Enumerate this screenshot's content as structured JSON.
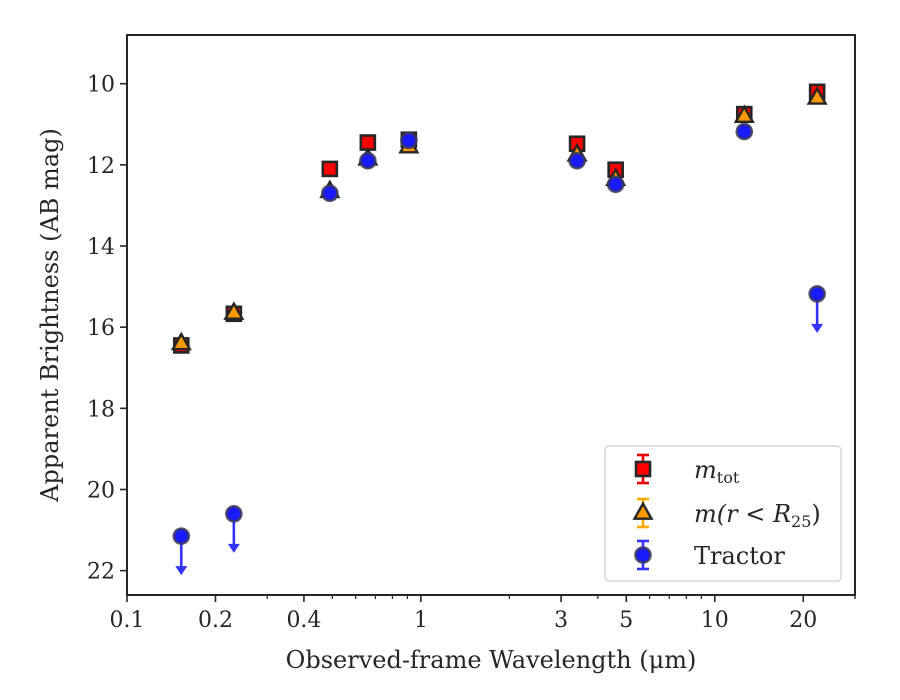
{
  "chart_data": {
    "type": "scatter",
    "xlabel": "Observed-frame Wavelength (μm)",
    "ylabel": "Apparent Brightness (AB mag)",
    "x_scale": "log",
    "xlim": [
      0.1,
      30
    ],
    "ylim": [
      22.6,
      8.8
    ],
    "y_inverted": true,
    "x_ticks": [
      {
        "value": 0.1,
        "label": "0.1"
      },
      {
        "value": 0.2,
        "label": "0.2"
      },
      {
        "value": 0.4,
        "label": "0.4"
      },
      {
        "value": 1,
        "label": "1"
      },
      {
        "value": 3,
        "label": "3"
      },
      {
        "value": 5,
        "label": "5"
      },
      {
        "value": 10,
        "label": "10"
      },
      {
        "value": 20,
        "label": "20"
      }
    ],
    "y_ticks": [
      {
        "value": 10,
        "label": "10"
      },
      {
        "value": 12,
        "label": "12"
      },
      {
        "value": 14,
        "label": "14"
      },
      {
        "value": 16,
        "label": "16"
      },
      {
        "value": 18,
        "label": "18"
      },
      {
        "value": 20,
        "label": "20"
      },
      {
        "value": 22,
        "label": "22"
      }
    ],
    "grid": false,
    "legend_position": "lower-right",
    "series": [
      {
        "name": "m_tot",
        "legend_label": "m",
        "legend_sub": "tot",
        "marker": "square",
        "face_color": "#ff0000",
        "edge_color": "#262626",
        "error_color": "#e60000",
        "points": [
          {
            "x": 0.153,
            "y": 16.45
          },
          {
            "x": 0.231,
            "y": 15.67
          },
          {
            "x": 0.49,
            "y": 12.1
          },
          {
            "x": 0.66,
            "y": 11.45
          },
          {
            "x": 0.91,
            "y": 11.38
          },
          {
            "x": 3.4,
            "y": 11.48
          },
          {
            "x": 4.6,
            "y": 12.12
          },
          {
            "x": 12.6,
            "y": 10.75
          },
          {
            "x": 22.3,
            "y": 10.2
          }
        ]
      },
      {
        "name": "m(r < R25)",
        "legend_label": "m(r < R",
        "legend_sub": "25",
        "legend_close": ")",
        "marker": "triangle",
        "face_color": "#ff9900",
        "edge_color": "#262626",
        "error_color": "#ffaa00",
        "points": [
          {
            "x": 0.153,
            "y": 16.4
          },
          {
            "x": 0.231,
            "y": 15.65
          },
          {
            "x": 0.49,
            "y": 12.65
          },
          {
            "x": 0.66,
            "y": 11.85
          },
          {
            "x": 0.91,
            "y": 11.55
          },
          {
            "x": 3.4,
            "y": 11.75
          },
          {
            "x": 4.6,
            "y": 12.35
          },
          {
            "x": 12.6,
            "y": 10.8
          },
          {
            "x": 22.3,
            "y": 10.35
          }
        ]
      },
      {
        "name": "Tractor",
        "legend_label": "Tractor",
        "marker": "circle",
        "face_color": "#1a1aff",
        "edge_color": "#3a3a5a",
        "error_color": "#3333ff",
        "points": [
          {
            "x": 0.153,
            "y": 21.15,
            "upper_limit": true
          },
          {
            "x": 0.231,
            "y": 20.6,
            "upper_limit": true
          },
          {
            "x": 0.49,
            "y": 12.7
          },
          {
            "x": 0.66,
            "y": 11.9
          },
          {
            "x": 0.91,
            "y": 11.4
          },
          {
            "x": 3.4,
            "y": 11.9
          },
          {
            "x": 4.6,
            "y": 12.48
          },
          {
            "x": 12.6,
            "y": 11.18
          },
          {
            "x": 22.3,
            "y": 15.18,
            "upper_limit": true
          }
        ]
      }
    ]
  }
}
